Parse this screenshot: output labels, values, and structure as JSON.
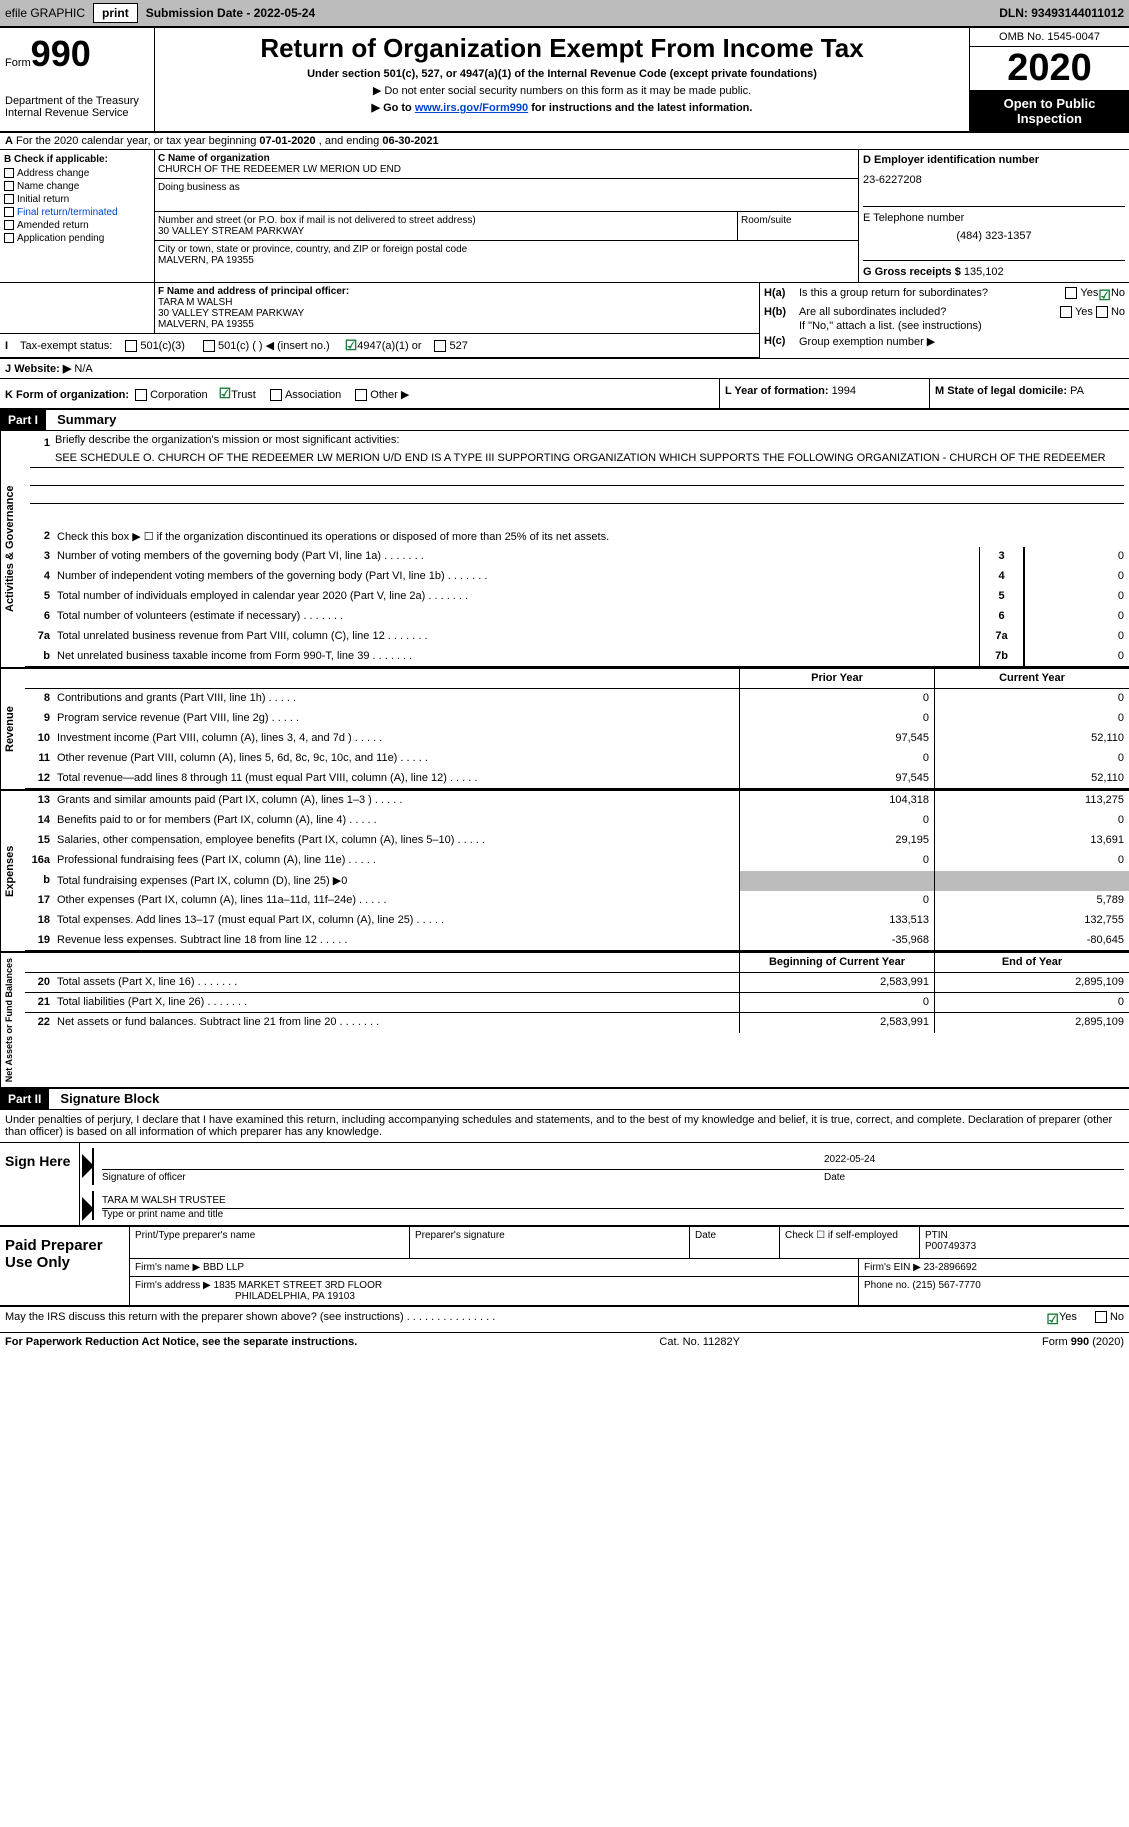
{
  "topbar": {
    "efile_label": "efile GRAPHIC",
    "print_btn": "print",
    "submission_label": "Submission Date - ",
    "submission_date": "2022-05-24",
    "dln_label": "DLN: ",
    "dln": "93493144011012"
  },
  "header": {
    "form_word": "Form",
    "form_num": "990",
    "dept": "Department of the Treasury",
    "irs": "Internal Revenue Service",
    "title": "Return of Organization Exempt From Income Tax",
    "sub1": "Under section 501(c), 527, or 4947(a)(1) of the Internal Revenue Code (except private foundations)",
    "sub2": "▶ Do not enter social security numbers on this form as it may be made public.",
    "sub3_pre": "▶ Go to ",
    "sub3_link": "www.irs.gov/Form990",
    "sub3_post": " for instructions and the latest information.",
    "omb": "OMB No. 1545-0047",
    "year": "2020",
    "inspection": "Open to Public Inspection"
  },
  "row_a": {
    "prefix": "A",
    "text": " For the 2020 calendar year, or tax year beginning ",
    "begin": "07-01-2020",
    "mid": "  , and ending ",
    "end": "06-30-2021"
  },
  "col_b": {
    "header": "B Check if applicable:",
    "items": [
      "Address change",
      "Name change",
      "Initial return",
      "Final return/terminated",
      "Amended return",
      "Application pending"
    ]
  },
  "col_c": {
    "name_label": "C Name of organization",
    "name": "CHURCH OF THE REDEEMER LW MERION UD END",
    "dba_label": "Doing business as",
    "addr_label": "Number and street (or P.O. box if mail is not delivered to street address)",
    "addr": "30 VALLEY STREAM PARKWAY",
    "room_label": "Room/suite",
    "city_label": "City or town, state or province, country, and ZIP or foreign postal code",
    "city": "MALVERN, PA  19355"
  },
  "col_d": {
    "ein_label": "D Employer identification number",
    "ein": "23-6227208",
    "tel_label": "E Telephone number",
    "tel": "(484) 323-1357",
    "gross_label": "G Gross receipts $ ",
    "gross": "135,102"
  },
  "row_f": {
    "label": "F Name and address of principal officer:",
    "name": "TARA M WALSH",
    "addr": "30 VALLEY STREAM PARKWAY",
    "city": "MALVERN, PA  19355"
  },
  "col_h": {
    "ha_label": "H(a)",
    "ha_text": "Is this a group return for subordinates?",
    "hb_label": "H(b)",
    "hb_text": "Are all subordinates included?",
    "hb_note": "If \"No,\" attach a list. (see instructions)",
    "hc_label": "H(c)",
    "hc_text": "Group exemption number ▶",
    "yes": "Yes",
    "no": "No"
  },
  "row_i": {
    "label": "I",
    "text": "Tax-exempt status:",
    "opt1": "501(c)(3)",
    "opt2": "501(c) (  ) ◀ (insert no.)",
    "opt3": "4947(a)(1) or",
    "opt4": "527"
  },
  "row_j": {
    "label": "J",
    "text": "Website: ▶",
    "val": "N/A"
  },
  "row_k": {
    "label": "K Form of organization:",
    "opts": [
      "Corporation",
      "Trust",
      "Association",
      "Other ▶"
    ]
  },
  "row_l": {
    "label": "L Year of formation: ",
    "val": "1994"
  },
  "row_m": {
    "label": "M State of legal domicile: ",
    "val": "PA"
  },
  "part1": {
    "header": "Part I",
    "title": "Summary",
    "line1_label": "1",
    "line1_text": "Briefly describe the organization's mission or most significant activities:",
    "mission": "SEE SCHEDULE O. CHURCH OF THE REDEEMER LW MERION U/D END IS A TYPE III SUPPORTING ORGANIZATION WHICH SUPPORTS THE FOLLOWING ORGANIZATION - CHURCH OF THE REDEEMER",
    "line2_num": "2",
    "line2_text": "Check this box ▶ ☐ if the organization discontinued its operations or disposed of more than 25% of its net assets.",
    "vtab_gov": "Activities & Governance",
    "vtab_rev": "Revenue",
    "vtab_exp": "Expenses",
    "vtab_net": "Net Assets or Fund Balances",
    "prior_header": "Prior Year",
    "current_header": "Current Year",
    "begin_header": "Beginning of Current Year",
    "end_header": "End of Year",
    "lines_gov": [
      {
        "n": "3",
        "t": "Number of voting members of the governing body (Part VI, line 1a)",
        "box": "3",
        "v": "0"
      },
      {
        "n": "4",
        "t": "Number of independent voting members of the governing body (Part VI, line 1b)",
        "box": "4",
        "v": "0"
      },
      {
        "n": "5",
        "t": "Total number of individuals employed in calendar year 2020 (Part V, line 2a)",
        "box": "5",
        "v": "0"
      },
      {
        "n": "6",
        "t": "Total number of volunteers (estimate if necessary)",
        "box": "6",
        "v": "0"
      },
      {
        "n": "7a",
        "t": "Total unrelated business revenue from Part VIII, column (C), line 12",
        "box": "7a",
        "v": "0"
      },
      {
        "n": "b",
        "t": "Net unrelated business taxable income from Form 990-T, line 39",
        "box": "7b",
        "v": "0"
      }
    ],
    "lines_rev": [
      {
        "n": "8",
        "t": "Contributions and grants (Part VIII, line 1h)",
        "p": "0",
        "c": "0"
      },
      {
        "n": "9",
        "t": "Program service revenue (Part VIII, line 2g)",
        "p": "0",
        "c": "0"
      },
      {
        "n": "10",
        "t": "Investment income (Part VIII, column (A), lines 3, 4, and 7d )",
        "p": "97,545",
        "c": "52,110"
      },
      {
        "n": "11",
        "t": "Other revenue (Part VIII, column (A), lines 5, 6d, 8c, 9c, 10c, and 11e)",
        "p": "0",
        "c": "0"
      },
      {
        "n": "12",
        "t": "Total revenue—add lines 8 through 11 (must equal Part VIII, column (A), line 12)",
        "p": "97,545",
        "c": "52,110"
      }
    ],
    "lines_exp": [
      {
        "n": "13",
        "t": "Grants and similar amounts paid (Part IX, column (A), lines 1–3 )",
        "p": "104,318",
        "c": "113,275"
      },
      {
        "n": "14",
        "t": "Benefits paid to or for members (Part IX, column (A), line 4)",
        "p": "0",
        "c": "0"
      },
      {
        "n": "15",
        "t": "Salaries, other compensation, employee benefits (Part IX, column (A), lines 5–10)",
        "p": "29,195",
        "c": "13,691"
      },
      {
        "n": "16a",
        "t": "Professional fundraising fees (Part IX, column (A), line 11e)",
        "p": "0",
        "c": "0"
      },
      {
        "n": "b",
        "t": "Total fundraising expenses (Part IX, column (D), line 25) ▶0",
        "p": "",
        "c": "",
        "shaded": true
      },
      {
        "n": "17",
        "t": "Other expenses (Part IX, column (A), lines 11a–11d, 11f–24e)",
        "p": "0",
        "c": "5,789"
      },
      {
        "n": "18",
        "t": "Total expenses. Add lines 13–17 (must equal Part IX, column (A), line 25)",
        "p": "133,513",
        "c": "132,755"
      },
      {
        "n": "19",
        "t": "Revenue less expenses. Subtract line 18 from line 12",
        "p": "-35,968",
        "c": "-80,645"
      }
    ],
    "lines_net": [
      {
        "n": "20",
        "t": "Total assets (Part X, line 16)",
        "p": "2,583,991",
        "c": "2,895,109"
      },
      {
        "n": "21",
        "t": "Total liabilities (Part X, line 26)",
        "p": "0",
        "c": "0"
      },
      {
        "n": "22",
        "t": "Net assets or fund balances. Subtract line 21 from line 20",
        "p": "2,583,991",
        "c": "2,895,109"
      }
    ]
  },
  "part2": {
    "header": "Part II",
    "title": "Signature Block",
    "declare": "Under penalties of perjury, I declare that I have examined this return, including accompanying schedules and statements, and to the best of my knowledge and belief, it is true, correct, and complete. Declaration of preparer (other than officer) is based on all information of which preparer has any knowledge.",
    "sign_here": "Sign Here",
    "sig_officer": "Signature of officer",
    "date_label": "Date",
    "date_val": "2022-05-24",
    "name_title": "TARA M WALSH  TRUSTEE",
    "name_label": "Type or print name and title",
    "paid_label": "Paid Preparer Use Only",
    "prep_name_label": "Print/Type preparer's name",
    "prep_sig_label": "Preparer's signature",
    "prep_date_label": "Date",
    "check_label": "Check ☐ if self-employed",
    "ptin_label": "PTIN",
    "ptin": "P00749373",
    "firm_name_label": "Firm's name    ▶ ",
    "firm_name": "BBD LLP",
    "firm_ein_label": "Firm's EIN ▶ ",
    "firm_ein": "23-2896692",
    "firm_addr_label": "Firm's address ▶ ",
    "firm_addr": "1835 MARKET STREET 3RD FLOOR",
    "firm_city": "PHILADELPHIA, PA  19103",
    "phone_label": "Phone no. ",
    "phone": "(215) 567-7770",
    "irs_discuss": "May the IRS discuss this return with the preparer shown above? (see instructions)",
    "yes": "Yes",
    "no": "No"
  },
  "footer": {
    "left": "For Paperwork Reduction Act Notice, see the separate instructions.",
    "mid": "Cat. No. 11282Y",
    "right_form": "Form ",
    "right_num": "990",
    "right_year": " (2020)"
  }
}
